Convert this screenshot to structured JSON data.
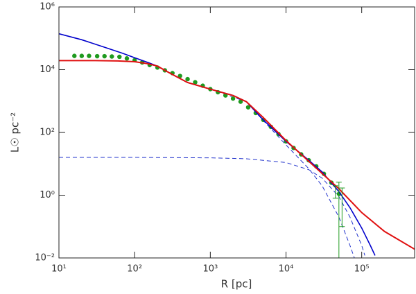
{
  "chart_data": {
    "type": "line",
    "xlabel": "R [pc]",
    "ylabel": "L☉ pc⁻²",
    "xscale": "log",
    "yscale": "log",
    "xlim": [
      10,
      500000
    ],
    "ylim": [
      0.01,
      1000000
    ],
    "xticks": [
      {
        "value": 10,
        "label": "10¹"
      },
      {
        "value": 100,
        "label": "10²"
      },
      {
        "value": 1000,
        "label": "10³"
      },
      {
        "value": 10000,
        "label": "10⁴"
      },
      {
        "value": 100000,
        "label": "10⁵"
      }
    ],
    "yticks": [
      {
        "value": 0.01,
        "label": "10⁻²"
      },
      {
        "value": 1,
        "label": "10⁰"
      },
      {
        "value": 100,
        "label": "10²"
      },
      {
        "value": 10000,
        "label": "10⁴"
      },
      {
        "value": 1000000,
        "label": "10⁶"
      }
    ],
    "series": [
      {
        "color": "#2233cc",
        "dash": true,
        "marker": false,
        "width": 1,
        "x": [
          10,
          100,
          1000,
          3000,
          10000,
          20000,
          30000,
          50000,
          70000,
          100000,
          110000
        ],
        "values": [
          16,
          16,
          15.5,
          14.5,
          11,
          6.5,
          3.5,
          0.9,
          0.2,
          0.025,
          0.012
        ]
      },
      {
        "color": "#2233cc",
        "dash": true,
        "marker": false,
        "width": 1,
        "x": [
          1000,
          3000,
          5000,
          10000,
          20000,
          30000,
          50000,
          70000,
          80000
        ],
        "values": [
          2400,
          950,
          240,
          40,
          7,
          2,
          0.2,
          0.025,
          0.01
        ]
      },
      {
        "color": "#1f9a1f",
        "dash": false,
        "marker": true,
        "width": 0,
        "x": [
          16,
          20,
          25,
          32,
          40,
          50,
          63,
          79,
          100,
          126,
          158,
          200,
          251,
          316,
          398,
          501,
          631,
          794,
          1000,
          1259,
          1585,
          1995,
          2512,
          3162,
          3981,
          5012,
          6310,
          7943,
          10000,
          12589,
          15849,
          19953,
          25119,
          31623,
          39811,
          50119
        ],
        "values": [
          27500,
          27500,
          27500,
          26900,
          26900,
          26300,
          25700,
          22900,
          20000,
          17000,
          14100,
          11700,
          9550,
          7760,
          6310,
          5010,
          3980,
          3090,
          2400,
          1910,
          1510,
          1200,
          955,
          631,
          417,
          251,
          151,
          89,
          52,
          32,
          20,
          13,
          8.3,
          4.8,
          2.5,
          1.1
        ]
      },
      {
        "color": "#0000cc",
        "dash": false,
        "marker": false,
        "width": 1.6,
        "x": [
          10,
          20,
          40,
          70,
          100,
          150,
          200,
          300,
          500,
          1000,
          2000,
          3000,
          5000,
          10000,
          20000,
          30000,
          50000,
          70000,
          100000,
          130000,
          150000
        ],
        "values": [
          140000,
          90000,
          52000,
          33000,
          24000,
          17000,
          13000,
          7500,
          3900,
          2400,
          1510,
          955,
          251,
          52,
          13,
          5.5,
          1.3,
          0.4,
          0.09,
          0.025,
          0.012
        ]
      },
      {
        "color": "#e01010",
        "dash": false,
        "marker": false,
        "width": 2,
        "x": [
          10,
          30,
          60,
          100,
          150,
          200,
          300,
          500,
          1000,
          2000,
          3000,
          5000,
          10000,
          20000,
          50000,
          100000,
          200000,
          500000
        ],
        "values": [
          19500,
          19500,
          19000,
          18000,
          15500,
          13000,
          7500,
          3900,
          2400,
          1500,
          950,
          300,
          55,
          12,
          1.6,
          0.28,
          0.07,
          0.019
        ]
      }
    ],
    "errorbars": {
      "color": "#1f9a1f",
      "x": [
        45000,
        50000,
        55000
      ],
      "values": [
        1.4,
        1.2,
        0.9
      ],
      "errors": [
        0.6,
        1.4,
        0.8
      ]
    }
  }
}
